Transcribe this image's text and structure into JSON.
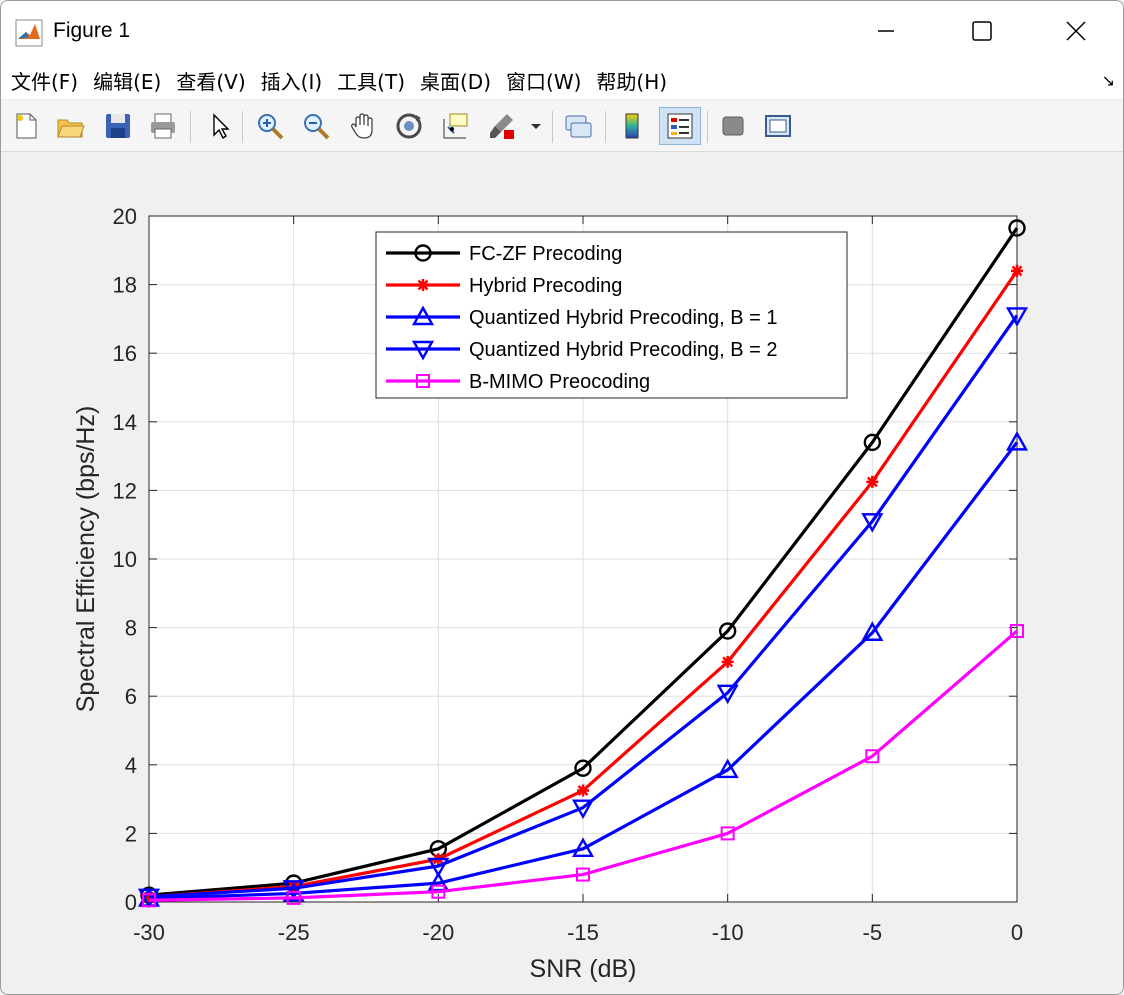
{
  "window": {
    "title": "Figure 1"
  },
  "menu": [
    "文件(F)",
    "编辑(E)",
    "查看(V)",
    "插入(I)",
    "工具(T)",
    "桌面(D)",
    "窗口(W)",
    "帮助(H)"
  ],
  "toolbar": [
    "new-figure-icon",
    "open-file-icon",
    "save-icon",
    "print-icon",
    "select-arrow-icon",
    "zoom-in-icon",
    "zoom-out-icon",
    "pan-hand-icon",
    "rotate-3d-icon",
    "data-cursor-icon",
    "brush-icon",
    "link-plot-icon",
    "colorbar-icon",
    "legend-icon",
    "hide-plot-tools-icon",
    "show-plot-tools-icon"
  ],
  "chart_data": {
    "type": "line",
    "xlabel": "SNR (dB)",
    "ylabel": "Spectral Efficiency (bps/Hz)",
    "xlim": [
      -30,
      0
    ],
    "ylim": [
      0,
      20
    ],
    "xticks": [
      "-30",
      "-25",
      "-20",
      "-15",
      "-10",
      "-5",
      "0"
    ],
    "yticks": [
      "0",
      "2",
      "4",
      "6",
      "8",
      "10",
      "12",
      "14",
      "16",
      "18",
      "20"
    ],
    "grid": true,
    "legend_position": "top-center",
    "x": [
      -30,
      -25,
      -20,
      -15,
      -10,
      -5,
      0
    ],
    "series": [
      {
        "name": "FC-ZF Precoding",
        "color": "#000000",
        "marker": "circle",
        "values": [
          0.2,
          0.55,
          1.55,
          3.9,
          7.9,
          13.4,
          19.65
        ]
      },
      {
        "name": "Hybrid Precoding",
        "color": "#ff0000",
        "marker": "asterisk",
        "values": [
          0.15,
          0.45,
          1.25,
          3.25,
          7.0,
          12.25,
          18.4
        ]
      },
      {
        "name": "Quantized Hybrid Precoding, B = 1",
        "color": "#0000ff",
        "marker": "triangle-up",
        "values": [
          0.1,
          0.25,
          0.55,
          1.55,
          3.85,
          7.85,
          13.4
        ]
      },
      {
        "name": "Quantized Hybrid Precoding, B = 2",
        "color": "#0000ff",
        "marker": "triangle-down",
        "values": [
          0.15,
          0.4,
          1.05,
          2.75,
          6.1,
          11.1,
          17.1
        ]
      },
      {
        "name": "B-MIMO Preocoding",
        "color": "#ff00ff",
        "marker": "square",
        "values": [
          0.05,
          0.12,
          0.3,
          0.8,
          2.0,
          4.25,
          7.9
        ]
      }
    ]
  }
}
